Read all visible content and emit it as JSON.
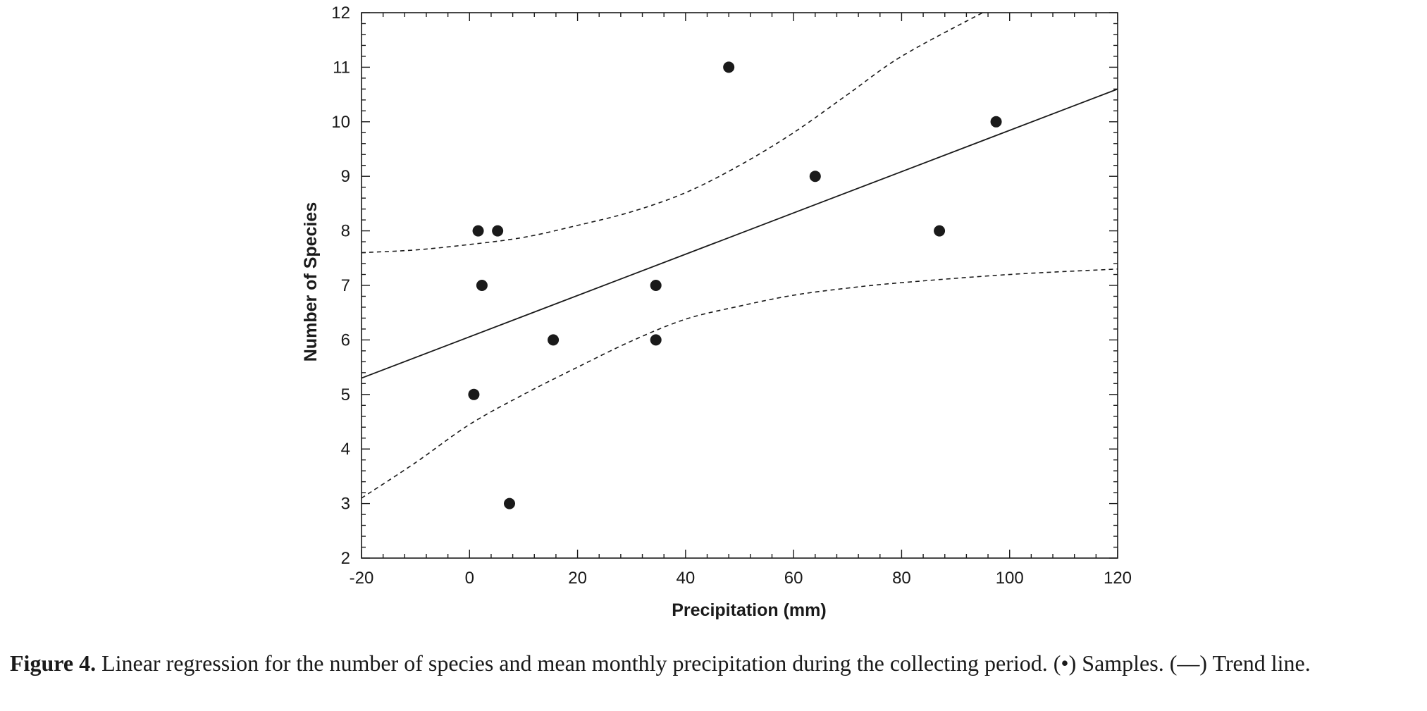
{
  "chart_data": {
    "type": "scatter",
    "title": "",
    "xlabel": "Precipitation (mm)",
    "ylabel": "Number of Species",
    "xlim": [
      -20,
      120
    ],
    "ylim": [
      2,
      12
    ],
    "xticks": [
      -20,
      0,
      20,
      40,
      60,
      80,
      100,
      120
    ],
    "yticks": [
      2,
      3,
      4,
      5,
      6,
      7,
      8,
      9,
      10,
      11,
      12
    ],
    "grid": false,
    "series": [
      {
        "name": "Samples",
        "marker": "filled-circle",
        "x": [
          0.8,
          1.6,
          2.3,
          5.2,
          7.4,
          15.5,
          34.5,
          34.5,
          48.0,
          64.0,
          87.0,
          97.5
        ],
        "y": [
          5,
          8,
          7,
          8,
          3,
          6,
          7,
          6,
          11,
          9,
          8,
          10
        ]
      },
      {
        "name": "Trend line",
        "style": "solid",
        "x": [
          -20,
          120
        ],
        "y": [
          5.3,
          10.6
        ]
      },
      {
        "name": "Upper confidence band",
        "style": "dashed",
        "x": [
          -20,
          -10,
          0,
          10,
          20,
          30,
          40,
          50,
          60,
          70,
          80,
          95
        ],
        "y": [
          7.6,
          7.65,
          7.75,
          7.88,
          8.1,
          8.35,
          8.7,
          9.2,
          9.8,
          10.5,
          11.2,
          12.0
        ]
      },
      {
        "name": "Lower confidence band",
        "style": "dashed",
        "x": [
          -20,
          -10,
          0,
          10,
          20,
          30,
          40,
          50,
          60,
          70,
          80,
          100,
          120
        ],
        "y": [
          3.1,
          3.75,
          4.45,
          5.0,
          5.5,
          5.98,
          6.38,
          6.62,
          6.82,
          6.95,
          7.05,
          7.2,
          7.3
        ]
      }
    ],
    "color": "#1a1a1a"
  },
  "caption": {
    "label": "Figure 4.",
    "text": " Linear regression for the number of species and mean monthly precipitation during the collecting period. (•) Samples. (—) Trend line."
  }
}
